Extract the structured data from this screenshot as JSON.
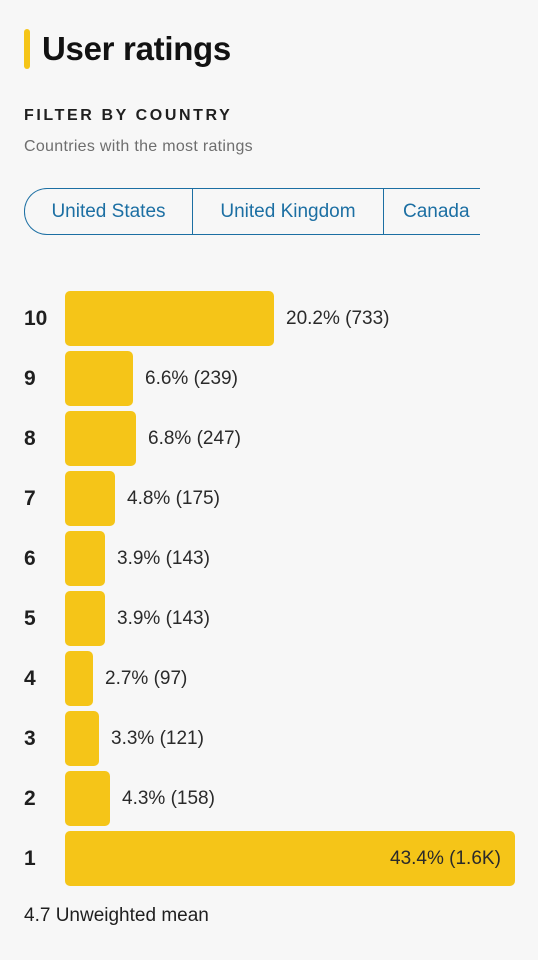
{
  "header": {
    "title": "User ratings"
  },
  "filter": {
    "label": "FILTER BY COUNTRY",
    "subtitle": "Countries with the most ratings",
    "chips": [
      "United States",
      "United Kingdom",
      "Canada"
    ]
  },
  "chart_data": {
    "type": "bar",
    "orientation": "horizontal",
    "categories": [
      "10",
      "9",
      "8",
      "7",
      "6",
      "5",
      "4",
      "3",
      "2",
      "1"
    ],
    "values": [
      20.2,
      6.6,
      6.8,
      4.8,
      3.9,
      3.9,
      2.7,
      3.3,
      4.3,
      43.4
    ],
    "counts": [
      "733",
      "239",
      "247",
      "175",
      "143",
      "143",
      "97",
      "121",
      "158",
      "1.6K"
    ],
    "labels": [
      "20.2% (733)",
      "6.6% (239)",
      "6.8% (247)",
      "4.8% (175)",
      "3.9% (143)",
      "3.9% (143)",
      "2.7% (97)",
      "3.3% (121)",
      "4.3% (158)",
      "43.4% (1.6K)"
    ],
    "bar_color": "#f5c518"
  },
  "summary": {
    "mean_text": "4.7 Unweighted mean"
  }
}
